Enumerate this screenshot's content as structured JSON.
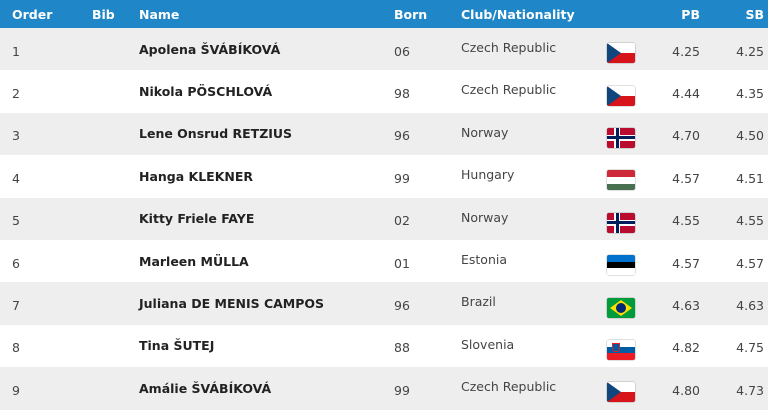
{
  "header": {
    "order": "Order",
    "bib": "Bib",
    "name": "Name",
    "born": "Born",
    "club": "Club/Nationality",
    "pb": "PB",
    "sb": "SB"
  },
  "colors": {
    "header_bg": "#1f87c7",
    "row_alt": "#eeeeee"
  },
  "rows": [
    {
      "order": "1",
      "bib": "",
      "name": "Apolena ŠVÁBÍKOVÁ",
      "born": "06",
      "club": "Czech Republic",
      "flag": "cz",
      "flag_icon": "czech-flag-icon",
      "pb": "4.25",
      "sb": "4.25"
    },
    {
      "order": "2",
      "bib": "",
      "name": "Nikola PÖSCHLOVÁ",
      "born": "98",
      "club": "Czech Republic",
      "flag": "cz",
      "flag_icon": "czech-flag-icon",
      "pb": "4.44",
      "sb": "4.35"
    },
    {
      "order": "3",
      "bib": "",
      "name": "Lene Onsrud RETZIUS",
      "born": "96",
      "club": "Norway",
      "flag": "no",
      "flag_icon": "norway-flag-icon",
      "pb": "4.70",
      "sb": "4.50"
    },
    {
      "order": "4",
      "bib": "",
      "name": "Hanga KLEKNER",
      "born": "99",
      "club": "Hungary",
      "flag": "hu",
      "flag_icon": "hungary-flag-icon",
      "pb": "4.57",
      "sb": "4.51"
    },
    {
      "order": "5",
      "bib": "",
      "name": "Kitty Friele FAYE",
      "born": "02",
      "club": "Norway",
      "flag": "no",
      "flag_icon": "norway-flag-icon",
      "pb": "4.55",
      "sb": "4.55"
    },
    {
      "order": "6",
      "bib": "",
      "name": "Marleen MÜLLA",
      "born": "01",
      "club": "Estonia",
      "flag": "ee",
      "flag_icon": "estonia-flag-icon",
      "pb": "4.57",
      "sb": "4.57"
    },
    {
      "order": "7",
      "bib": "",
      "name": "Juliana DE MENIS CAMPOS",
      "born": "96",
      "club": "Brazil",
      "flag": "br",
      "flag_icon": "brazil-flag-icon",
      "pb": "4.63",
      "sb": "4.63"
    },
    {
      "order": "8",
      "bib": "",
      "name": "Tina ŠUTEJ",
      "born": "88",
      "club": "Slovenia",
      "flag": "si",
      "flag_icon": "slovenia-flag-icon",
      "pb": "4.82",
      "sb": "4.75"
    },
    {
      "order": "9",
      "bib": "",
      "name": "Amálie ŠVÁBÍKOVÁ",
      "born": "99",
      "club": "Czech Republic",
      "flag": "cz",
      "flag_icon": "czech-flag-icon",
      "pb": "4.80",
      "sb": "4.73"
    }
  ]
}
